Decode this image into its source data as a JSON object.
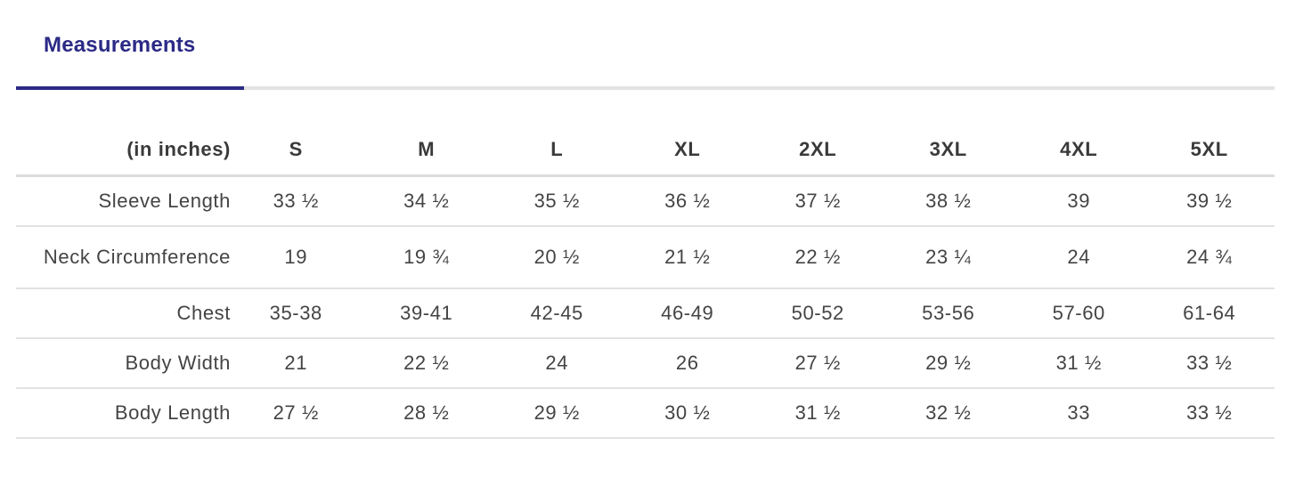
{
  "tabs": [
    {
      "label": "Measurements",
      "active": true
    }
  ],
  "colors": {
    "accent": "#2b2a86",
    "text": "#444444",
    "divider": "#e2e2e2"
  },
  "table": {
    "unit_header": "(in inches)",
    "sizes": [
      "S",
      "M",
      "L",
      "XL",
      "2XL",
      "3XL",
      "4XL",
      "5XL"
    ],
    "rows": [
      {
        "label": "Sleeve Length",
        "values": [
          "33 ½",
          "34 ½",
          "35 ½",
          "36 ½",
          "37 ½",
          "38 ½",
          "39",
          "39 ½"
        ]
      },
      {
        "label": "Neck Circumference",
        "values": [
          "19",
          "19 ¾",
          "20 ½",
          "21 ½",
          "22 ½",
          "23 ¼",
          "24",
          "24 ¾"
        ]
      },
      {
        "label": "Chest",
        "values": [
          "35-38",
          "39-41",
          "42-45",
          "46-49",
          "50-52",
          "53-56",
          "57-60",
          "61-64"
        ]
      },
      {
        "label": "Body Width",
        "values": [
          "21",
          "22 ½",
          "24",
          "26",
          "27 ½",
          "29 ½",
          "31 ½",
          "33 ½"
        ]
      },
      {
        "label": "Body Length",
        "values": [
          "27 ½",
          "28 ½",
          "29 ½",
          "30 ½",
          "31 ½",
          "32 ½",
          "33",
          "33 ½"
        ]
      }
    ]
  }
}
